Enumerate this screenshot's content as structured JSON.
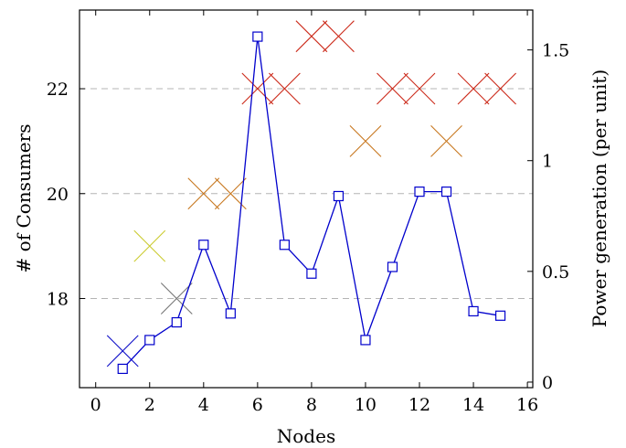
{
  "chart_data": {
    "type": "scatter",
    "xlabel": "Nodes",
    "ylabel": "# of Consumers",
    "y2label": "Power generation (per unit)",
    "xlim": [
      -0.6,
      16.2
    ],
    "ylim": [
      16.3,
      23.5
    ],
    "y2lim": [
      -0.025,
      1.68
    ],
    "x_ticks": [
      0,
      2,
      4,
      6,
      8,
      10,
      12,
      14,
      16
    ],
    "y_ticks": [
      18,
      20,
      22
    ],
    "y2_ticks": [
      0,
      0.5,
      1,
      1.5
    ],
    "x_tick_labels": [
      "0",
      "2",
      "4",
      "6",
      "8",
      "10",
      "12",
      "14",
      "16"
    ],
    "y_tick_labels": [
      "18",
      "20",
      "22"
    ],
    "y2_tick_labels": [
      "0",
      "0.5",
      "1",
      "1.5"
    ],
    "y_gridlines": [
      18,
      20,
      22
    ],
    "grid_style": "dashed horizontal at left-axis ticks",
    "series": [
      {
        "axis": "left",
        "marker": "cross",
        "points": [
          {
            "x": 1,
            "y": 17,
            "color": "#1010c8"
          },
          {
            "x": 2,
            "y": 19,
            "color": "#cccc33"
          },
          {
            "x": 3,
            "y": 18,
            "color": "#777777"
          },
          {
            "x": 4,
            "y": 20,
            "color": "#c87820"
          },
          {
            "x": 5,
            "y": 20,
            "color": "#c87820"
          },
          {
            "x": 6,
            "y": 22,
            "color": "#cc2a1a"
          },
          {
            "x": 7,
            "y": 22,
            "color": "#cc2a1a"
          },
          {
            "x": 8,
            "y": 23,
            "color": "#cc2a1a"
          },
          {
            "x": 9,
            "y": 23,
            "color": "#cc2a1a"
          },
          {
            "x": 10,
            "y": 21,
            "color": "#c87820"
          },
          {
            "x": 11,
            "y": 22,
            "color": "#cc2a1a"
          },
          {
            "x": 12,
            "y": 22,
            "color": "#cc2a1a"
          },
          {
            "x": 13,
            "y": 21,
            "color": "#c87820"
          },
          {
            "x": 14,
            "y": 22,
            "color": "#cc2a1a"
          },
          {
            "x": 15,
            "y": 22,
            "color": "#cc2a1a"
          }
        ]
      },
      {
        "axis": "right",
        "type": "line",
        "marker": "square",
        "color": "#0000cc",
        "x": [
          1,
          2,
          3,
          4,
          5,
          6,
          7,
          8,
          9,
          10,
          11,
          12,
          13,
          14,
          15
        ],
        "values": [
          0.06,
          0.19,
          0.27,
          0.62,
          0.31,
          1.56,
          0.62,
          0.49,
          0.84,
          0.19,
          0.52,
          0.86,
          0.86,
          0.32,
          0.3
        ]
      }
    ]
  }
}
